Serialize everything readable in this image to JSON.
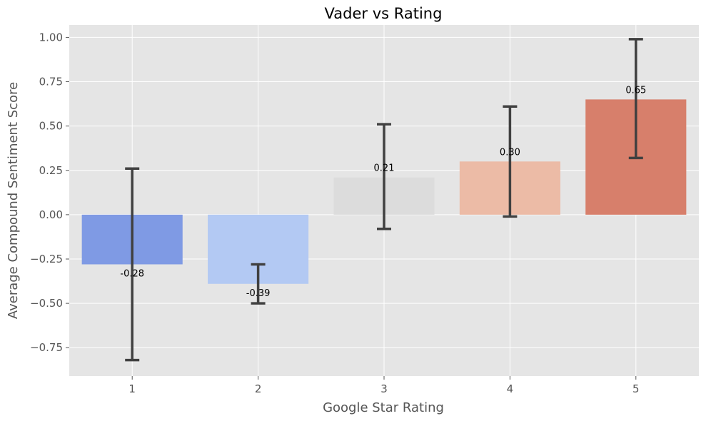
{
  "chart_data": {
    "type": "bar",
    "title": "Vader vs Rating",
    "xlabel": "Google Star Rating",
    "ylabel": "Average Compound Sentiment Score",
    "categories": [
      "1",
      "2",
      "3",
      "4",
      "5"
    ],
    "values": [
      -0.28,
      -0.39,
      0.21,
      0.3,
      0.65
    ],
    "value_labels": [
      "-0.28",
      "-0.39",
      "0.21",
      "0.30",
      "0.65"
    ],
    "error_low": [
      -0.82,
      -0.5,
      -0.08,
      -0.01,
      0.32
    ],
    "error_high": [
      0.26,
      -0.28,
      0.51,
      0.61,
      0.99
    ],
    "bar_colors": [
      "#7f9ae4",
      "#b3c9f3",
      "#dcdcdc",
      "#ecbba6",
      "#d77f6b"
    ],
    "ylim": [
      -0.91,
      1.07
    ],
    "yticks": [
      -0.75,
      -0.5,
      -0.25,
      0.0,
      0.25,
      0.5,
      0.75,
      1.0
    ],
    "ytick_labels": [
      "−0.75",
      "−0.50",
      "−0.25",
      "0.00",
      "0.25",
      "0.50",
      "0.75",
      "1.00"
    ],
    "grid": true,
    "background": "#e5e5e5",
    "grid_color": "#ffffff",
    "error_bar_color": "#404040",
    "legend": "none"
  }
}
